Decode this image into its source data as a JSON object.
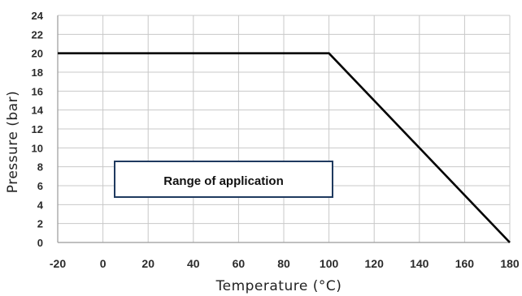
{
  "chart_data": {
    "type": "line",
    "title": "",
    "xlabel": "Temperature (°C)",
    "ylabel": "Pressure (bar)",
    "xlim": [
      -20,
      180
    ],
    "ylim": [
      0,
      24
    ],
    "x_ticks": [
      -20,
      0,
      20,
      40,
      60,
      80,
      100,
      120,
      140,
      160,
      180
    ],
    "y_ticks": [
      0,
      2,
      4,
      6,
      8,
      10,
      12,
      14,
      16,
      18,
      20,
      22,
      24
    ],
    "grid": true,
    "legend": "none",
    "series": [
      {
        "x": [
          -20,
          100,
          180
        ],
        "y": [
          20,
          20,
          0
        ],
        "color": "#000000"
      }
    ],
    "annotation": {
      "text": "Range of application",
      "border_color": "#1f3a5f"
    }
  }
}
